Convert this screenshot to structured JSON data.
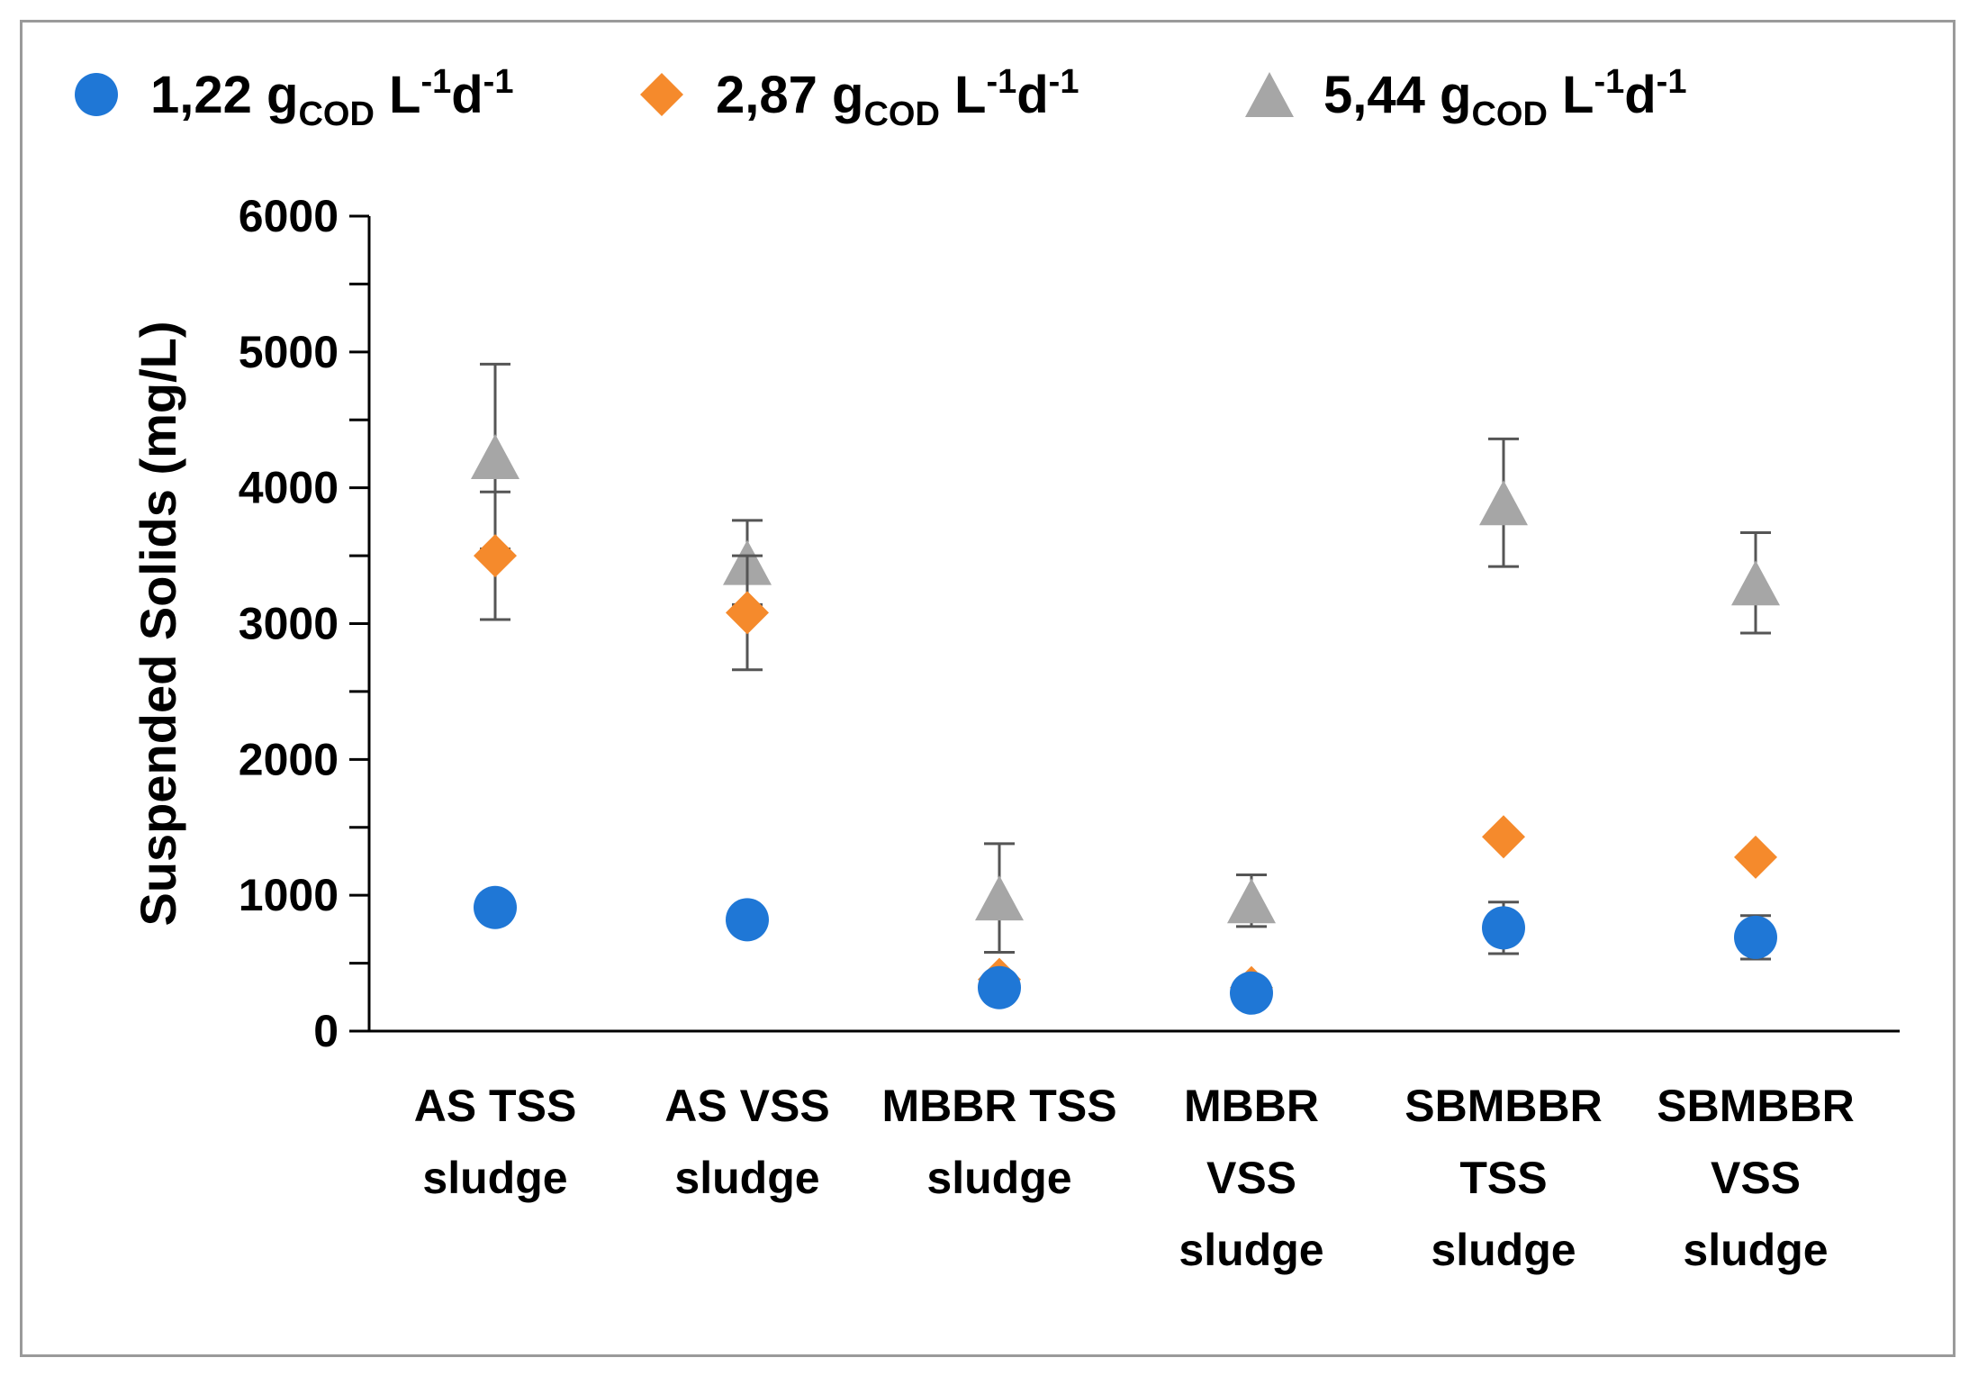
{
  "chart_data": {
    "type": "scatter",
    "title": "",
    "xlabel": "",
    "ylabel": "Suspended Solids (mg/L)",
    "ylim": [
      0,
      6000
    ],
    "yticks": [
      0,
      1000,
      2000,
      3000,
      4000,
      5000,
      6000
    ],
    "ytick_labels": [
      "0",
      "1000",
      "2000",
      "3000",
      "4000",
      "5000",
      "6000"
    ],
    "categories": [
      [
        "AS TSS",
        "sludge"
      ],
      [
        "AS VSS",
        "sludge"
      ],
      [
        "MBBR TSS",
        "sludge"
      ],
      [
        "MBBR",
        "VSS",
        "sludge"
      ],
      [
        "SBMBBR",
        "TSS",
        "sludge"
      ],
      [
        "SBMBBR",
        "VSS",
        "sludge"
      ]
    ],
    "legend_position": "top",
    "series": [
      {
        "name": "1,22 gCOD L-1d-1",
        "legend": {
          "value": "1,22",
          "unit": "g",
          "sub": "COD",
          "l": "L",
          "exp1": "-1",
          "d": "d",
          "exp2": "-1"
        },
        "marker": "circle",
        "color": "#1f77d6",
        "values": [
          910,
          820,
          320,
          280,
          760,
          690
        ],
        "errors": [
          null,
          null,
          null,
          null,
          190,
          160
        ]
      },
      {
        "name": "2,87 gCODL-1d-1",
        "legend": {
          "value": "2,87",
          "unit": "g",
          "sub": "COD",
          "l": "L",
          "exp1": "-1",
          "d": "d",
          "exp2": "-1"
        },
        "marker": "diamond",
        "color": "#f58a2c",
        "values": [
          3500,
          3080,
          380,
          320,
          1430,
          1280
        ],
        "errors": [
          470,
          420,
          null,
          null,
          null,
          null
        ]
      },
      {
        "name": "5,44 gCOD L-1d-1",
        "legend": {
          "value": "5,44",
          "unit": "g",
          "sub": "COD",
          "l": "L",
          "exp1": "-1",
          "d": "d",
          "exp2": "-1"
        },
        "marker": "triangle",
        "color": "#a6a6a6",
        "values": [
          4230,
          3450,
          980,
          960,
          3890,
          3300
        ],
        "errors": [
          680,
          310,
          400,
          190,
          470,
          370
        ]
      }
    ]
  }
}
